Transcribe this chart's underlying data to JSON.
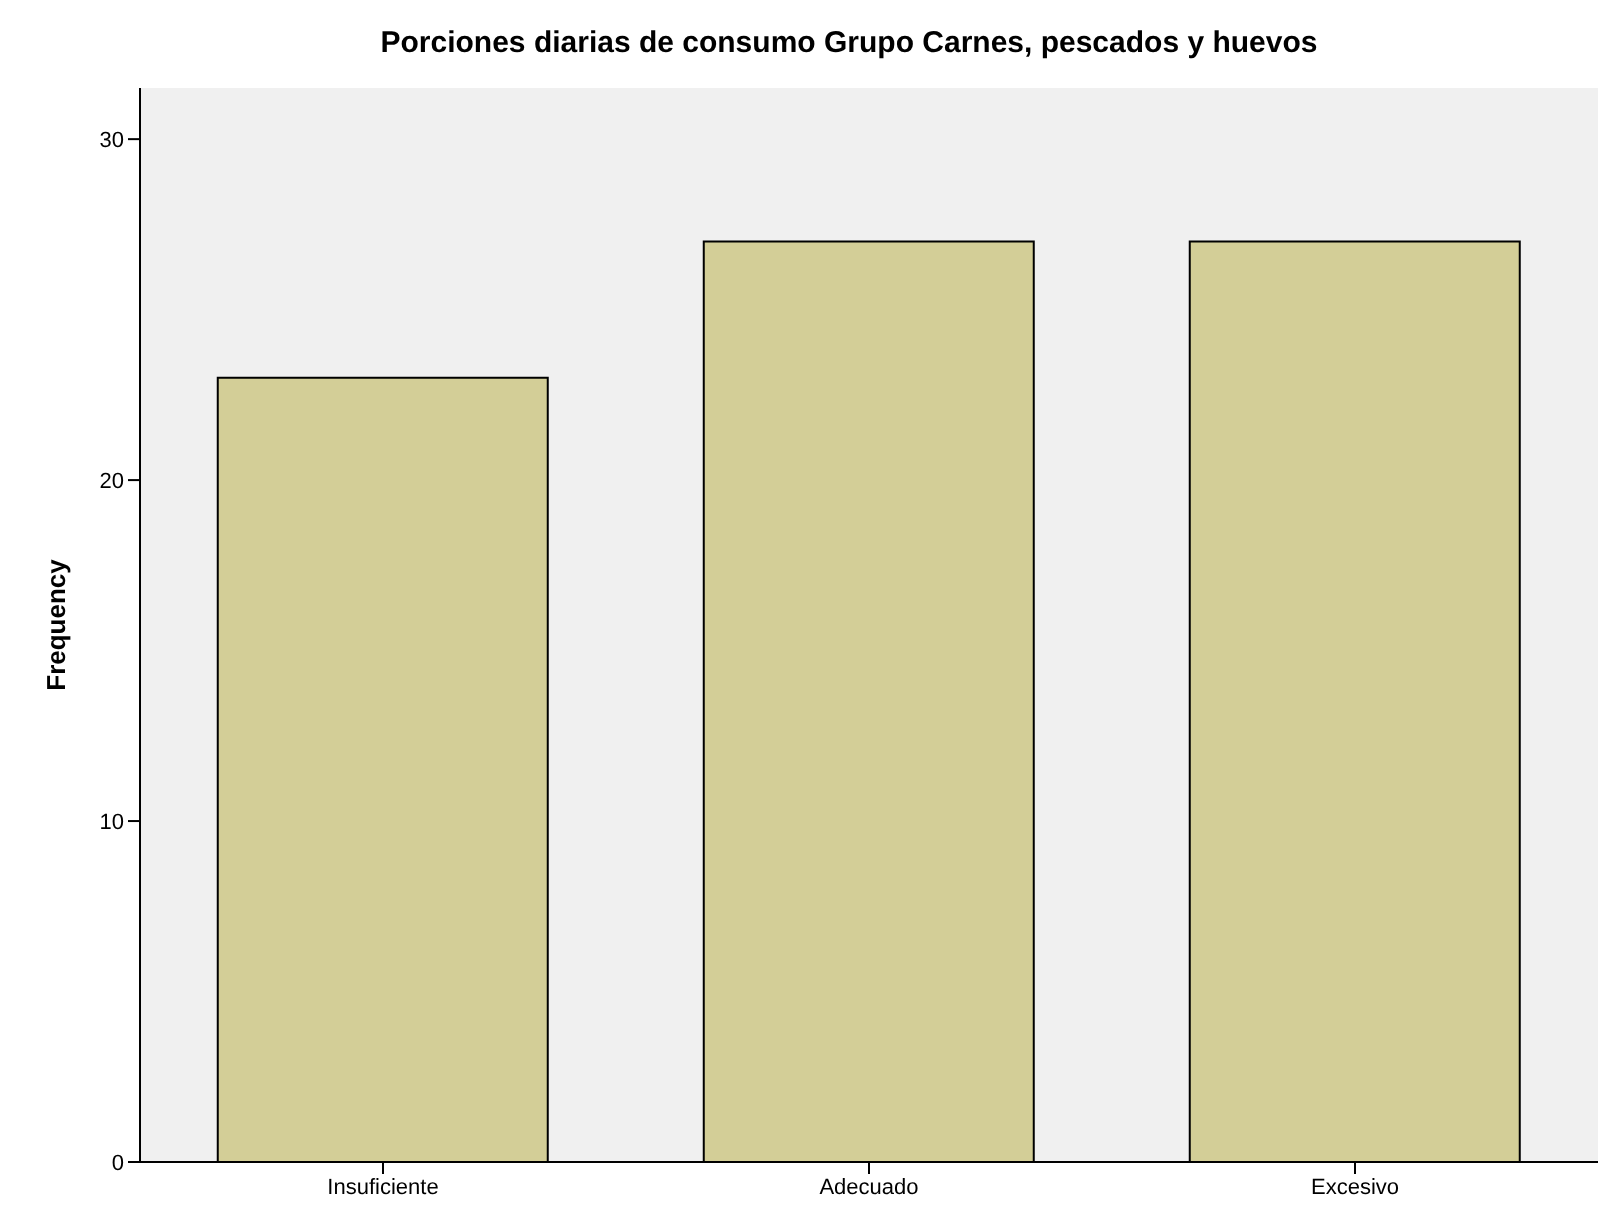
{
  "chart_data": {
    "type": "bar",
    "title": "Porciones diarias de consumo Grupo Carnes, pescados y huevos",
    "ylabel": "Frequency",
    "categories": [
      "Insuficiente",
      "Adecuado",
      "Excesivo"
    ],
    "values": [
      23,
      27,
      27
    ],
    "color": "#d3ce97",
    "ylim": [
      0,
      31.5
    ],
    "yticks": [
      0,
      10,
      20,
      30
    ]
  }
}
